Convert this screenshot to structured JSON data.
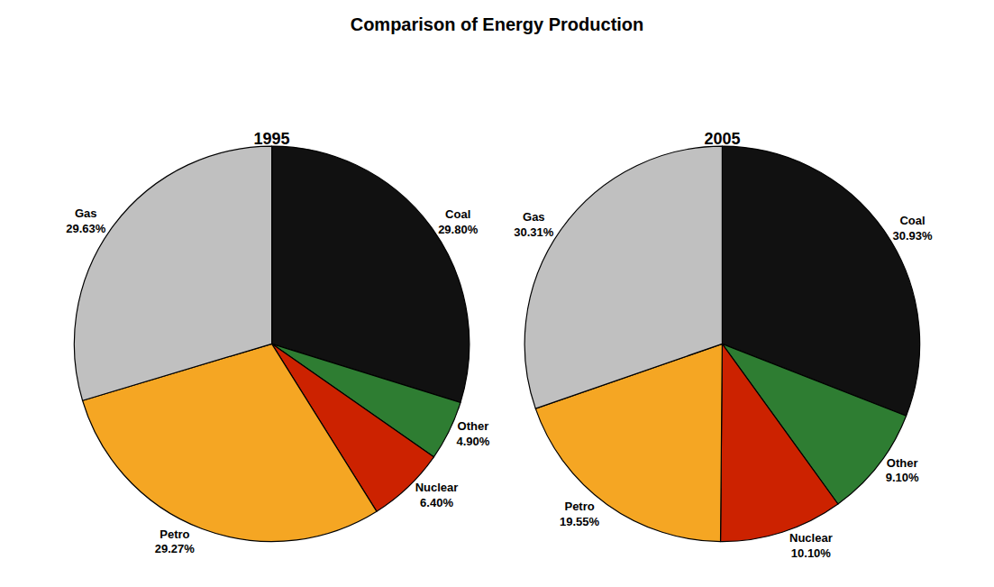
{
  "title": "Comparison of Energy Production",
  "chart_data": [
    {
      "type": "pie",
      "title": "1995",
      "categories": [
        "Coal",
        "Other",
        "Nuclear",
        "Petro",
        "Gas"
      ],
      "values": [
        29.8,
        4.9,
        6.4,
        29.27,
        29.63
      ],
      "value_labels": [
        "29.80%",
        "4.90%",
        "6.40%",
        "29.27%",
        "29.63%"
      ],
      "colors": [
        "#111111",
        "#2e7d32",
        "#cc2200",
        "#f5a623",
        "#c0c0c0"
      ],
      "data_labels": true
    },
    {
      "type": "pie",
      "title": "2005",
      "categories": [
        "Coal",
        "Other",
        "Nuclear",
        "Petro",
        "Gas"
      ],
      "values": [
        30.93,
        9.1,
        10.1,
        19.55,
        30.31
      ],
      "value_labels": [
        "30.93%",
        "9.10%",
        "10.10%",
        "19.55%",
        "30.31%"
      ],
      "colors": [
        "#111111",
        "#2e7d32",
        "#cc2200",
        "#f5a623",
        "#c0c0c0"
      ],
      "data_labels": true
    }
  ]
}
